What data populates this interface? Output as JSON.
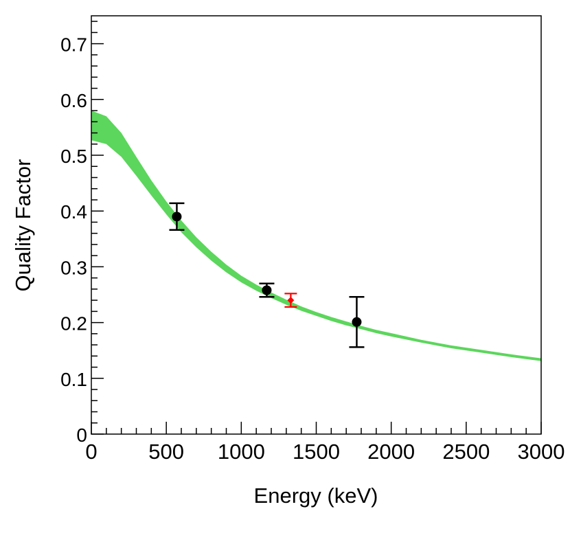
{
  "chart_data": {
    "type": "scatter",
    "xlabel": "Energy (keV)",
    "ylabel": "Quality Factor",
    "xlim": [
      0,
      3000
    ],
    "ylim": [
      0,
      0.75
    ],
    "xticks": [
      0,
      500,
      1000,
      1500,
      2000,
      2500,
      3000
    ],
    "xtick_labels": [
      "0",
      "500",
      "1000",
      "1500",
      "2000",
      "2500",
      "3000"
    ],
    "yticks": [
      0,
      0.1,
      0.2,
      0.3,
      0.4,
      0.5,
      0.6,
      0.7
    ],
    "ytick_labels": [
      "0",
      "0.1",
      "0.2",
      "0.3",
      "0.4",
      "0.5",
      "0.6",
      "0.7"
    ],
    "grid": false,
    "band": {
      "color": "#5cd65c",
      "x": [
        0,
        100,
        200,
        300,
        400,
        500,
        600,
        700,
        800,
        900,
        1000,
        1100,
        1200,
        1300,
        1400,
        1500,
        1600,
        1700,
        1800,
        1900,
        2000,
        2200,
        2400,
        2600,
        2800,
        3000
      ],
      "lower": [
        0.527,
        0.52,
        0.497,
        0.463,
        0.428,
        0.394,
        0.362,
        0.335,
        0.311,
        0.29,
        0.272,
        0.257,
        0.244,
        0.232,
        0.221,
        0.212,
        0.203,
        0.195,
        0.188,
        0.181,
        0.175,
        0.164,
        0.154,
        0.146,
        0.138,
        0.131
      ],
      "upper": [
        0.58,
        0.57,
        0.54,
        0.497,
        0.455,
        0.417,
        0.383,
        0.353,
        0.327,
        0.304,
        0.284,
        0.268,
        0.254,
        0.241,
        0.229,
        0.219,
        0.21,
        0.202,
        0.194,
        0.187,
        0.181,
        0.169,
        0.159,
        0.151,
        0.143,
        0.136
      ]
    },
    "series": [
      {
        "color": "#000000",
        "marker": "circle",
        "points": [
          {
            "x": 570,
            "y": 0.39,
            "ylow": 0.366,
            "yhigh": 0.414
          },
          {
            "x": 1170,
            "y": 0.258,
            "ylow": 0.246,
            "yhigh": 0.27
          },
          {
            "x": 1770,
            "y": 0.201,
            "ylow": 0.156,
            "yhigh": 0.246
          }
        ]
      },
      {
        "color": "#ff0000",
        "marker": "diamond",
        "points": [
          {
            "x": 1330,
            "y": 0.24,
            "ylow": 0.228,
            "yhigh": 0.252
          }
        ]
      }
    ]
  }
}
